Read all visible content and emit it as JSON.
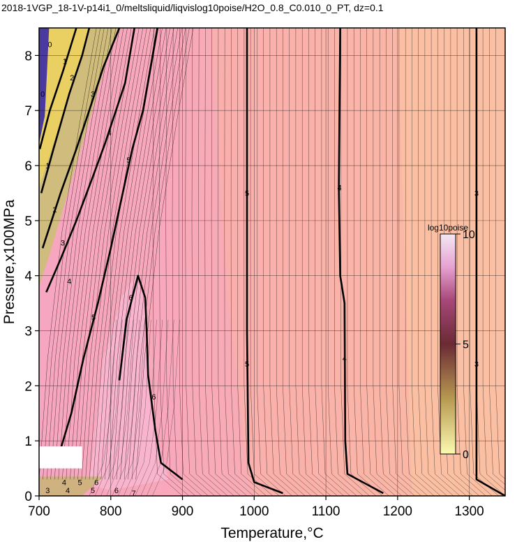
{
  "chart_data": {
    "type": "heatmap",
    "title": "2018-1VGP_18-1V-p14i1_0/meltsliquid/liqvislog10poise/H2O_0.8_C0.010_0_PT, dz=0.1",
    "xlabel": "Temperature,°C",
    "ylabel": "Pressure,x100MPa",
    "xlim": [
      700,
      1350
    ],
    "ylim": [
      0,
      8.5
    ],
    "x_ticks": [
      700,
      800,
      900,
      1000,
      1100,
      1200,
      1300
    ],
    "y_ticks": [
      0,
      1,
      2,
      3,
      4,
      5,
      6,
      7,
      8
    ],
    "grid": true,
    "contour_interval": 0.1,
    "colorbar": {
      "label": "log10poise",
      "range": [
        0,
        10
      ],
      "ticks": [
        0,
        5,
        10
      ],
      "placement": "right-center",
      "colors": [
        "#f3f0a6",
        "#8a2e3a",
        "#5a1a4a",
        "#f0d6ec"
      ]
    },
    "field_colors": {
      "low": "#ecd060",
      "mid": "#f7a6b4",
      "high_region": "#f8b6cf",
      "hot": "#fbc2a3",
      "max": "#4a3aa0"
    },
    "labeled_contours": [
      {
        "level": 5,
        "points": [
          [
            990,
            8.5
          ],
          [
            990,
            5.6
          ],
          [
            990,
            3.0
          ],
          [
            992,
            0.6
          ],
          [
            1000,
            0.25
          ],
          [
            1040,
            0.05
          ]
        ]
      },
      {
        "level": 4,
        "points": [
          [
            1120,
            8.5
          ],
          [
            1118,
            5.6
          ],
          [
            1120,
            4.0
          ],
          [
            1126,
            3.5
          ],
          [
            1127,
            1.0
          ],
          [
            1130,
            0.4
          ],
          [
            1180,
            0.05
          ]
        ]
      },
      {
        "level": 3,
        "points": [
          [
            1310,
            8.5
          ],
          [
            1310,
            5.5
          ],
          [
            1310,
            3.0
          ],
          [
            1310,
            0.3
          ],
          [
            1350,
            0.0
          ]
        ]
      },
      {
        "level": 6,
        "points": [
          [
            812,
            2.1
          ],
          [
            822,
            3.2
          ],
          [
            838,
            4.0
          ],
          [
            848,
            3.6
          ],
          [
            850,
            3.0
          ],
          [
            852,
            2.2
          ],
          [
            862,
            1.2
          ],
          [
            870,
            0.6
          ],
          [
            900,
            0.3
          ]
        ]
      },
      {
        "level": 5,
        "points": [
          [
            722,
            0.5
          ],
          [
            745,
            1.5
          ],
          [
            762,
            2.5
          ],
          [
            782,
            3.5
          ],
          [
            800,
            4.5
          ],
          [
            820,
            5.7
          ],
          [
            830,
            6.3
          ],
          [
            845,
            7.0
          ],
          [
            865,
            8.5
          ]
        ]
      },
      {
        "level": 4,
        "points": [
          [
            710,
            3.7
          ],
          [
            730,
            4.3
          ],
          [
            752,
            5.0
          ],
          [
            775,
            5.8
          ],
          [
            792,
            6.4
          ],
          [
            820,
            7.5
          ],
          [
            833,
            8.5
          ]
        ]
      },
      {
        "level": 3,
        "points": [
          [
            705,
            4.5
          ],
          [
            730,
            5.5
          ],
          [
            752,
            6.3
          ],
          [
            770,
            7.0
          ],
          [
            790,
            7.8
          ],
          [
            812,
            8.5
          ]
        ]
      },
      {
        "level": 2,
        "points": [
          [
            703,
            5.5
          ],
          [
            720,
            6.3
          ],
          [
            742,
            7.3
          ],
          [
            760,
            8.0
          ],
          [
            770,
            8.5
          ]
        ]
      },
      {
        "level": 1,
        "points": [
          [
            701,
            6.3
          ],
          [
            715,
            7.0
          ],
          [
            733,
            7.7
          ],
          [
            752,
            8.5
          ]
        ]
      }
    ],
    "contour_labels": [
      {
        "text": "5",
        "x": 990,
        "y": 5.5
      },
      {
        "text": "5",
        "x": 990,
        "y": 2.4
      },
      {
        "text": "4",
        "x": 1119,
        "y": 5.6
      },
      {
        "text": "4",
        "x": 1126,
        "y": 2.5
      },
      {
        "text": "3",
        "x": 1310,
        "y": 5.5
      },
      {
        "text": "3",
        "x": 1310,
        "y": 2.4
      },
      {
        "text": "6",
        "x": 828,
        "y": 3.6
      },
      {
        "text": "6",
        "x": 860,
        "y": 1.8
      },
      {
        "text": "5",
        "x": 776,
        "y": 3.25
      },
      {
        "text": "5",
        "x": 825,
        "y": 6.1
      },
      {
        "text": "4",
        "x": 742,
        "y": 3.9
      },
      {
        "text": "4",
        "x": 798,
        "y": 6.6
      },
      {
        "text": "3",
        "x": 733,
        "y": 4.6
      },
      {
        "text": "3",
        "x": 775,
        "y": 7.3
      },
      {
        "text": "2",
        "x": 722,
        "y": 5.2
      },
      {
        "text": "2",
        "x": 746,
        "y": 7.6
      },
      {
        "text": "1",
        "x": 712,
        "y": 6.0
      },
      {
        "text": "1",
        "x": 736,
        "y": 7.9
      },
      {
        "text": "0",
        "x": 705,
        "y": 7.3
      },
      {
        "text": "0",
        "x": 715,
        "y": 8.2
      },
      {
        "text": "4",
        "x": 735,
        "y": 0.25
      },
      {
        "text": "5",
        "x": 757,
        "y": 0.25
      },
      {
        "text": "6",
        "x": 780,
        "y": 0.25
      },
      {
        "text": "3",
        "x": 712,
        "y": 0.1
      },
      {
        "text": "4",
        "x": 740,
        "y": 0.1
      },
      {
        "text": "5",
        "x": 775,
        "y": 0.1
      },
      {
        "text": "6",
        "x": 808,
        "y": 0.1
      },
      {
        "text": "7",
        "x": 832,
        "y": 0.05
      }
    ],
    "masked_region": {
      "x": [
        700,
        760
      ],
      "y": [
        0.5,
        0.9
      ]
    }
  }
}
